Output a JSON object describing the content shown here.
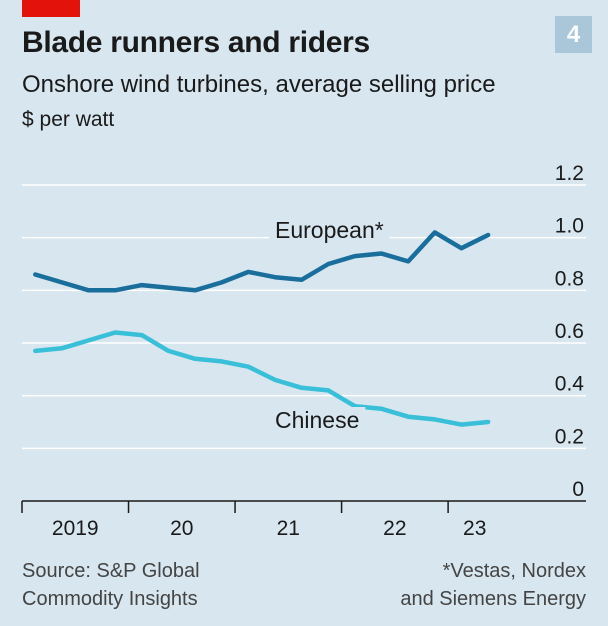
{
  "header": {
    "title": "Blade runners and riders",
    "subtitle": "Onshore wind turbines, average selling price",
    "unit": "$ per watt",
    "badge": "4"
  },
  "footer": {
    "source_line1": "Source: S&P Global",
    "source_line2": "Commodity Insights",
    "note_line1": "*Vestas, Nordex",
    "note_line2": "and Siemens Energy"
  },
  "colors": {
    "background": "#d7e6ef",
    "european": "#1a6e9c",
    "chinese": "#39bfd8",
    "grid": "#ffffff",
    "accent": "#e3120b"
  },
  "chart_data": {
    "type": "line",
    "title": "Blade runners and riders",
    "subtitle": "Onshore wind turbines, average selling price",
    "ylabel": "$ per watt",
    "ylim": [
      0,
      1.2
    ],
    "yticks": [
      0,
      0.2,
      0.4,
      0.6,
      0.8,
      1.0,
      1.2
    ],
    "ytick_labels": [
      "0",
      "0.2",
      "0.4",
      "0.6",
      "0.8",
      "1.0",
      "1.2"
    ],
    "xlim": [
      2019.0,
      2023.75
    ],
    "x_boundaries": [
      2019.0,
      2020.0,
      2021.0,
      2022.0,
      2023.0
    ],
    "x_labels": [
      {
        "label": "2019",
        "x": 2019.5
      },
      {
        "label": "20",
        "x": 2020.5
      },
      {
        "label": "21",
        "x": 2021.5
      },
      {
        "label": "22",
        "x": 2022.5
      },
      {
        "label": "23",
        "x": 2023.25
      }
    ],
    "x": [
      2019.125,
      2019.375,
      2019.625,
      2019.875,
      2020.125,
      2020.375,
      2020.625,
      2020.875,
      2021.125,
      2021.375,
      2021.625,
      2021.875,
      2022.125,
      2022.375,
      2022.625,
      2022.875,
      2023.125,
      2023.375
    ],
    "grid": true,
    "series": [
      {
        "name": "European*",
        "color": "#1a6e9c",
        "values": [
          0.86,
          0.83,
          0.8,
          0.8,
          0.82,
          0.81,
          0.8,
          0.83,
          0.87,
          0.85,
          0.84,
          0.9,
          0.93,
          0.94,
          0.91,
          1.02,
          0.96,
          1.01
        ]
      },
      {
        "name": "Chinese",
        "color": "#39bfd8",
        "values": [
          0.57,
          0.58,
          0.61,
          0.64,
          0.63,
          0.57,
          0.54,
          0.53,
          0.51,
          0.46,
          0.43,
          0.42,
          0.36,
          0.35,
          0.32,
          0.31,
          0.29,
          0.3
        ]
      }
    ]
  }
}
